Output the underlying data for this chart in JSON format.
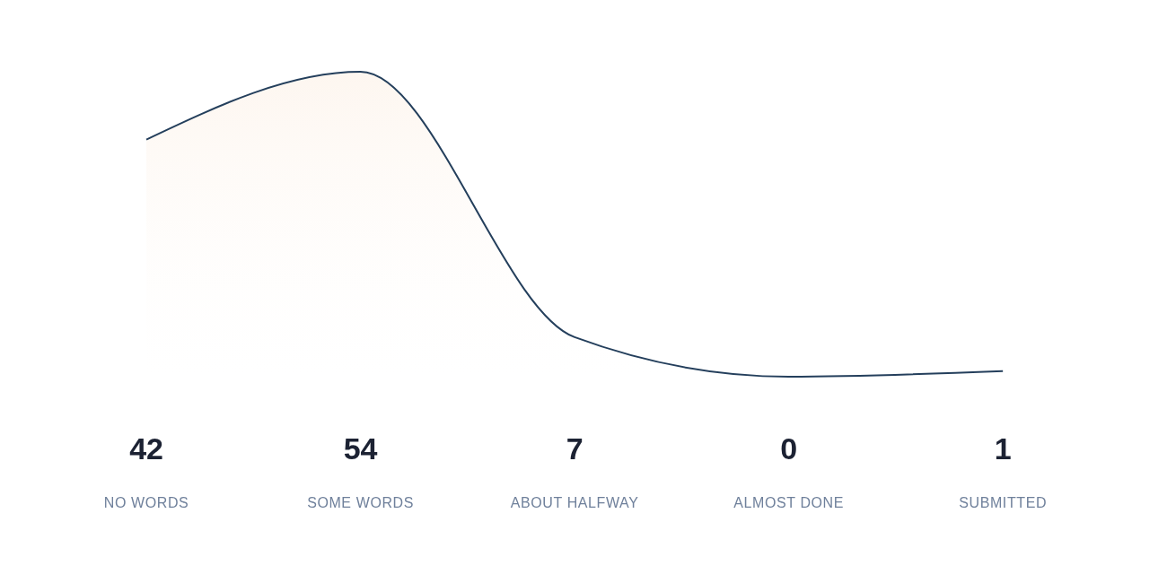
{
  "chart_data": {
    "type": "area",
    "categories": [
      "NO WORDS",
      "SOME WORDS",
      "ABOUT HALFWAY",
      "ALMOST DONE",
      "SUBMITTED"
    ],
    "series": [
      {
        "color": "#243f5c",
        "values": [
          42,
          54,
          7,
          0,
          1
        ]
      }
    ],
    "data_labels": true,
    "grid": false,
    "legend": false,
    "marker": "none",
    "line_style": "solid"
  }
}
